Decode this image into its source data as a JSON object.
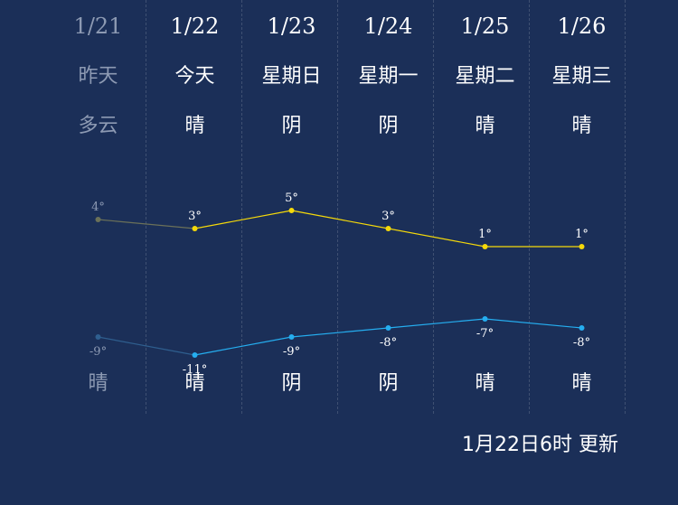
{
  "days": [
    {
      "date": "1/21",
      "weekday": "昨天",
      "weather_day": "多云",
      "weather_night": "晴",
      "high": "4°",
      "low": "-9°",
      "past": true
    },
    {
      "date": "1/22",
      "weekday": "今天",
      "weather_day": "晴",
      "weather_night": "晴",
      "high": "3°",
      "low": "-11°",
      "past": false
    },
    {
      "date": "1/23",
      "weekday": "星期日",
      "weather_day": "阴",
      "weather_night": "阴",
      "high": "5°",
      "low": "-9°",
      "past": false
    },
    {
      "date": "1/24",
      "weekday": "星期一",
      "weather_day": "阴",
      "weather_night": "阴",
      "high": "3°",
      "low": "-8°",
      "past": false
    },
    {
      "date": "1/25",
      "weekday": "星期二",
      "weather_day": "晴",
      "weather_night": "晴",
      "high": "1°",
      "low": "-7°",
      "past": false
    },
    {
      "date": "1/26",
      "weekday": "星期三",
      "weather_day": "晴",
      "weather_night": "晴",
      "high": "1°",
      "low": "-8°",
      "past": false
    }
  ],
  "chart_data": {
    "type": "line",
    "x": [
      "1/21",
      "1/22",
      "1/23",
      "1/24",
      "1/25",
      "1/26"
    ],
    "series": [
      {
        "values": [
          4,
          3,
          5,
          3,
          1,
          1
        ],
        "color": "#f5d90a",
        "past_color": "#6b7159"
      },
      {
        "values": [
          -9,
          -11,
          -9,
          -8,
          -7,
          -8
        ],
        "color": "#25aef0",
        "past_color": "#2f5f8f"
      }
    ]
  },
  "update_text": "1月22日6时 更新",
  "colors": {
    "background": "#1b2f58",
    "text": "#ffffff",
    "past_text": "#8d9ab3",
    "high_line": "#f5d90a",
    "low_line": "#25aef0"
  }
}
